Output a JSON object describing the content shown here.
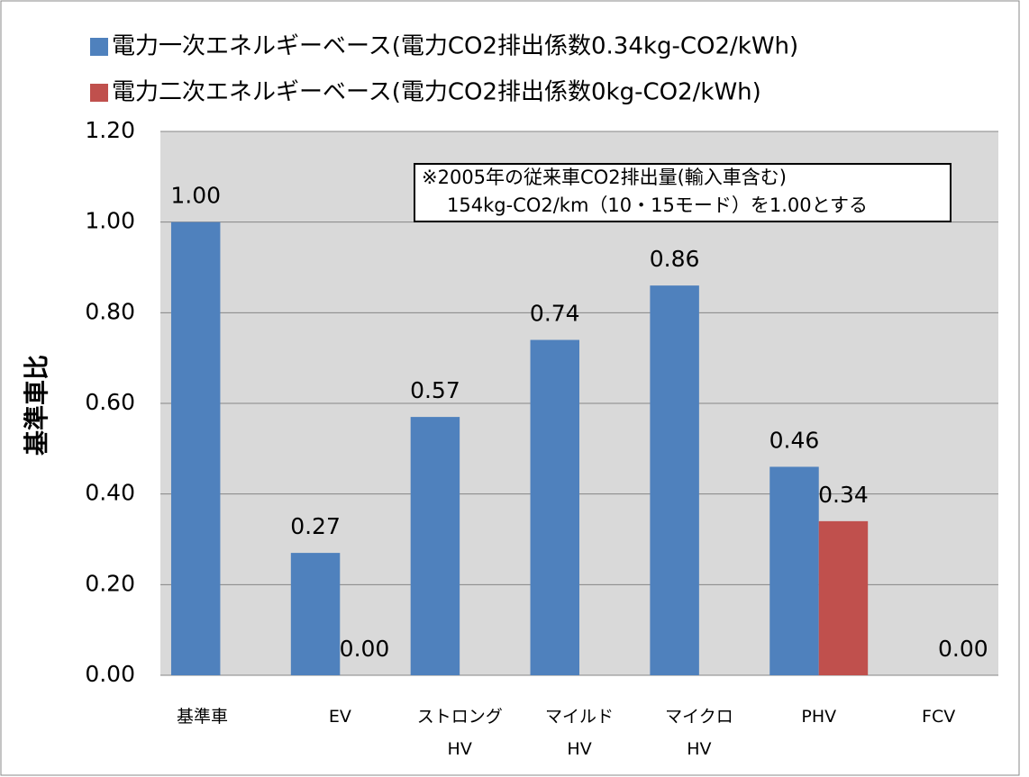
{
  "chart_data": {
    "type": "bar",
    "y_axis_label": "基準車比",
    "annotation": [
      "※2005年の従来車CO2排出量(輸入車含む)",
      "154kg-CO2/km（10・15モード）を1.00とする"
    ],
    "categories": [
      "基準車",
      "EV",
      "ストロング\nHV",
      "マイルド\nHV",
      "マイクロ\nHV",
      "PHV",
      "FCV"
    ],
    "series": [
      {
        "name": "電力一次エネルギーベース(電力CO2排出係数0.34kg-CO2/kWh)",
        "color": "#4f81bd",
        "values": [
          1,
          0.27,
          0.57,
          0.74,
          0.86,
          0.46,
          null
        ],
        "value_labels": [
          "1.00",
          "0.27",
          "0.57",
          "0.74",
          "0.86",
          "0.46",
          null
        ]
      },
      {
        "name": "電力二次エネルギーベース(電力CO2排出係数0kg-CO2/kWh)",
        "color": "#c0504d",
        "values": [
          null,
          0,
          null,
          null,
          null,
          0.34,
          0
        ],
        "value_labels": [
          null,
          "0.00",
          null,
          null,
          null,
          "0.34",
          "0.00"
        ]
      }
    ],
    "ylim": [
      0,
      1.2
    ],
    "yticks": [
      {
        "value": 0,
        "label": "0.00"
      },
      {
        "value": 0.2,
        "label": "0.20"
      },
      {
        "value": 0.4,
        "label": "0.40"
      },
      {
        "value": 0.6,
        "label": "0.60"
      },
      {
        "value": 0.8,
        "label": "0.80"
      },
      {
        "value": 1,
        "label": "1.00"
      },
      {
        "value": 1.2,
        "label": "1.20"
      }
    ],
    "grid": true,
    "legend": "top"
  }
}
